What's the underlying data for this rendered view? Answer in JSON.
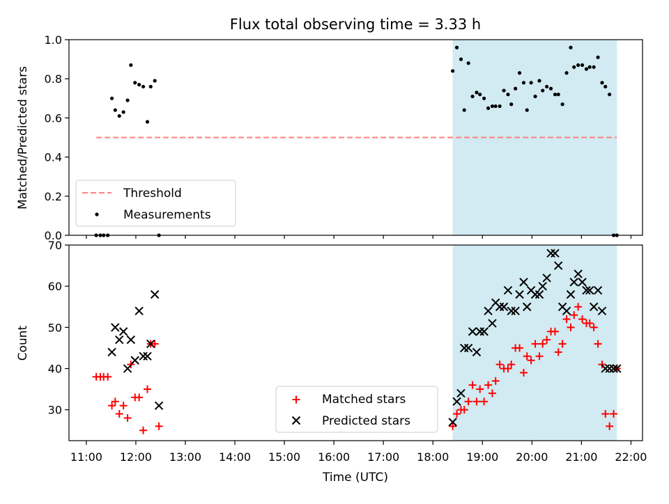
{
  "title": "Flux total observing time = 3.33 h",
  "chart_data": [
    {
      "type": "scatter",
      "ylabel": "Matched/Predicted stars",
      "xlim": [
        "10:39",
        "22:14"
      ],
      "ylim": [
        0,
        1.0
      ],
      "yticks": [
        "0.0",
        "0.2",
        "0.4",
        "0.6",
        "0.8",
        "1.0"
      ],
      "shaded_region": [
        "18:24",
        "21:43"
      ],
      "shaded_color": "#add8e6",
      "legend": {
        "placement": "lower-left",
        "entries": [
          {
            "label": "Threshold",
            "marker": "dashed-line",
            "color": "#ff7f7f"
          },
          {
            "label": "Measurements",
            "marker": "dot",
            "color": "#000000"
          }
        ]
      },
      "series": [
        {
          "name": "Threshold",
          "style": "dashed",
          "color": "#ff7f7f",
          "x": [
            "11:12",
            "21:43"
          ],
          "y": [
            0.5,
            0.5
          ]
        },
        {
          "name": "Measurements",
          "style": "points",
          "color": "#000000",
          "x": [
            "11:12",
            "11:17",
            "11:21",
            "11:26",
            "11:31",
            "11:35",
            "11:40",
            "11:45",
            "11:50",
            "11:54",
            "11:59",
            "12:04",
            "12:09",
            "12:14",
            "12:18",
            "12:23",
            "12:28",
            "18:24",
            "18:29",
            "18:34",
            "18:38",
            "18:43",
            "18:48",
            "18:53",
            "18:57",
            "19:02",
            "19:07",
            "19:12",
            "19:16",
            "19:21",
            "19:26",
            "19:31",
            "19:35",
            "19:40",
            "19:45",
            "19:50",
            "19:54",
            "19:59",
            "20:04",
            "20:09",
            "20:13",
            "20:18",
            "20:23",
            "20:28",
            "20:32",
            "20:37",
            "20:42",
            "20:47",
            "20:51",
            "20:56",
            "21:01",
            "21:06",
            "21:10",
            "21:15",
            "21:20",
            "21:25",
            "21:29",
            "21:34",
            "21:39",
            "21:43"
          ],
          "y": [
            0.0,
            0.0,
            0.0,
            0.0,
            0.7,
            0.64,
            0.61,
            0.63,
            0.69,
            0.87,
            0.78,
            0.77,
            0.76,
            0.58,
            0.76,
            0.79,
            0.0,
            0.84,
            0.96,
            0.9,
            0.64,
            0.88,
            0.71,
            0.73,
            0.72,
            0.7,
            0.65,
            0.66,
            0.66,
            0.66,
            0.74,
            0.72,
            0.67,
            0.75,
            0.83,
            0.78,
            0.64,
            0.78,
            0.71,
            0.79,
            0.74,
            0.76,
            0.75,
            0.72,
            0.72,
            0.67,
            0.83,
            0.96,
            0.86,
            0.87,
            0.87,
            0.85,
            0.86,
            0.86,
            0.91,
            0.78,
            0.76,
            0.72,
            0.0,
            0.0
          ]
        }
      ]
    },
    {
      "type": "scatter",
      "xlabel": "Time (UTC)",
      "ylabel": "Count",
      "xlim": [
        "10:39",
        "22:14"
      ],
      "ylim": [
        22.5,
        70
      ],
      "xticks": [
        "11:00",
        "12:00",
        "13:00",
        "14:00",
        "15:00",
        "16:00",
        "17:00",
        "18:00",
        "19:00",
        "20:00",
        "21:00",
        "22:00"
      ],
      "yticks": [
        "30",
        "40",
        "50",
        "60",
        "70"
      ],
      "shaded_region": [
        "18:24",
        "21:43"
      ],
      "shaded_color": "#add8e6",
      "legend": {
        "placement": "lower-center",
        "entries": [
          {
            "label": "Matched stars",
            "marker": "plus",
            "color": "#ff0000"
          },
          {
            "label": "Predicted stars",
            "marker": "x",
            "color": "#000000"
          }
        ]
      },
      "series": [
        {
          "name": "Matched stars",
          "marker": "plus",
          "color": "#ff0000",
          "x": [
            "11:12",
            "11:17",
            "11:21",
            "11:26",
            "11:31",
            "11:35",
            "11:40",
            "11:45",
            "11:50",
            "11:54",
            "11:59",
            "12:04",
            "12:09",
            "12:14",
            "12:18",
            "12:23",
            "12:28",
            "18:24",
            "18:29",
            "18:34",
            "18:38",
            "18:43",
            "18:48",
            "18:53",
            "18:57",
            "19:02",
            "19:07",
            "19:12",
            "19:16",
            "19:21",
            "19:26",
            "19:31",
            "19:35",
            "19:40",
            "19:45",
            "19:50",
            "19:54",
            "19:59",
            "20:04",
            "20:09",
            "20:13",
            "20:18",
            "20:23",
            "20:28",
            "20:32",
            "20:37",
            "20:42",
            "20:47",
            "20:51",
            "20:56",
            "21:01",
            "21:06",
            "21:10",
            "21:15",
            "21:20",
            "21:25",
            "21:29",
            "21:34",
            "21:39",
            "21:43"
          ],
          "y": [
            38,
            38,
            38,
            38,
            31,
            32,
            29,
            31,
            28,
            41,
            33,
            33,
            25,
            35,
            46,
            46,
            26,
            26,
            29,
            30,
            30,
            32,
            36,
            32,
            35,
            32,
            36,
            34,
            37,
            41,
            40,
            40,
            41,
            45,
            45,
            39,
            43,
            42,
            46,
            43,
            46,
            47,
            49,
            49,
            44,
            46,
            52,
            50,
            53,
            55,
            52,
            51,
            51,
            50,
            46,
            41,
            29,
            26,
            29,
            40
          ],
          "y_note_removed": true
        },
        {
          "name": "Predicted stars",
          "marker": "x",
          "color": "#000000",
          "x": [
            "11:31",
            "11:35",
            "11:40",
            "11:45",
            "11:50",
            "11:54",
            "11:59",
            "12:04",
            "12:09",
            "12:14",
            "12:18",
            "12:23",
            "12:28",
            "18:24",
            "18:29",
            "18:34",
            "18:38",
            "18:43",
            "18:48",
            "18:53",
            "18:57",
            "19:02",
            "19:07",
            "19:12",
            "19:16",
            "19:21",
            "19:26",
            "19:31",
            "19:35",
            "19:40",
            "19:45",
            "19:50",
            "19:54",
            "19:59",
            "20:04",
            "20:09",
            "20:13",
            "20:18",
            "20:23",
            "20:28",
            "20:32",
            "20:37",
            "20:42",
            "20:47",
            "20:51",
            "20:56",
            "21:01",
            "21:06",
            "21:10",
            "21:15",
            "21:20",
            "21:25",
            "21:29",
            "21:34",
            "21:39",
            "21:43"
          ],
          "y": [
            44,
            50,
            47,
            49,
            40,
            47,
            42,
            54,
            43,
            43,
            46,
            58,
            31,
            27,
            32,
            34,
            45,
            45,
            49,
            44,
            49,
            49,
            54,
            51,
            56,
            55,
            55,
            59,
            54,
            54,
            58,
            61,
            55,
            59,
            58,
            58,
            60,
            62,
            68,
            68,
            65,
            55,
            54,
            58,
            61,
            63,
            61,
            59,
            59,
            55,
            59,
            54,
            40,
            40,
            40,
            40
          ]
        }
      ]
    }
  ]
}
